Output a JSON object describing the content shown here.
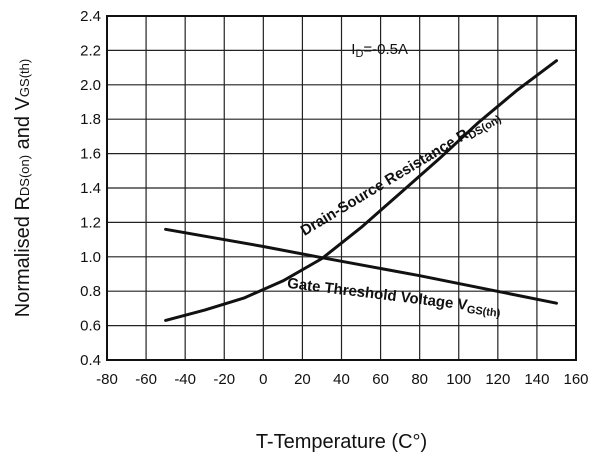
{
  "chart_data": {
    "type": "line",
    "title": "",
    "xlabel": "T-Temperature (C°)",
    "ylabel_parts": {
      "a": "Normalised R",
      "b": "DS(on)",
      "c": " and V",
      "d": "GS(th)"
    },
    "xlim": [
      -80,
      160
    ],
    "ylim": [
      0.4,
      2.4
    ],
    "xticks": [
      -80,
      -60,
      -40,
      -20,
      0,
      20,
      40,
      60,
      80,
      100,
      120,
      140,
      160
    ],
    "yticks": [
      "0.4",
      "0.6",
      "0.8",
      "1.0",
      "1.2",
      "1.4",
      "1.6",
      "1.8",
      "2.0",
      "2.2",
      "2.4"
    ],
    "grid": true,
    "annotation": {
      "main": "I",
      "sub": "D",
      "rest": "=-0.5A"
    },
    "series": [
      {
        "name": "Drain-Source Resistance RDS(on)",
        "label": {
          "main": "Drain-Source Resistance R",
          "sub": "DS(on)"
        },
        "x": [
          -50,
          -30,
          -10,
          10,
          30,
          50,
          70,
          90,
          110,
          130,
          150
        ],
        "y": [
          0.63,
          0.69,
          0.76,
          0.86,
          0.99,
          1.17,
          1.37,
          1.57,
          1.78,
          1.97,
          2.14
        ]
      },
      {
        "name": "Gate Threshold Voltage VGS(th)",
        "label": {
          "main": "Gate Threshold Voltage V",
          "sub": "GS(th)"
        },
        "x": [
          -50,
          0,
          30,
          80,
          150
        ],
        "y": [
          1.16,
          1.06,
          0.995,
          0.89,
          0.73
        ]
      }
    ]
  }
}
